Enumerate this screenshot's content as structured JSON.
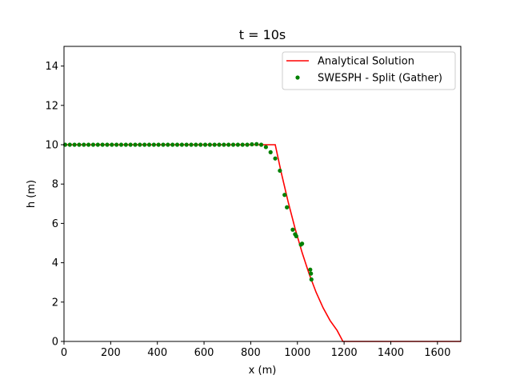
{
  "chart_data": {
    "type": "line",
    "title": "t = 10s",
    "xlabel": "x (m)",
    "ylabel": "h (m)",
    "xlim": [
      0,
      1700
    ],
    "ylim": [
      0,
      15
    ],
    "xticks": [
      0,
      200,
      400,
      600,
      800,
      1000,
      1200,
      1400,
      1600
    ],
    "yticks": [
      0,
      2,
      4,
      6,
      8,
      10,
      12,
      14
    ],
    "xtick_labels": [
      "0",
      "200",
      "400",
      "600",
      "800",
      "1000",
      "1200",
      "1400",
      "1600"
    ],
    "ytick_labels": [
      "0",
      "2",
      "4",
      "6",
      "8",
      "10",
      "12",
      "14"
    ],
    "grid": false,
    "legend_position": "top-right",
    "series": [
      {
        "name": "Analytical Solution",
        "kind": "line",
        "color": "#ff0000",
        "x": [
          0,
          905,
          930,
          960,
          990,
          1020,
          1050,
          1080,
          1110,
          1140,
          1170,
          1195,
          1700
        ],
        "y": [
          10,
          10,
          8.62,
          7.11,
          5.74,
          4.52,
          3.44,
          2.5,
          1.71,
          1.06,
          0.56,
          0.0,
          0.0
        ]
      },
      {
        "name": "SWESPH - Split (Gather)",
        "kind": "scatter",
        "color": "#008000",
        "x": [
          5,
          25,
          45,
          65,
          85,
          105,
          125,
          145,
          165,
          185,
          205,
          225,
          245,
          265,
          285,
          305,
          325,
          345,
          365,
          385,
          405,
          425,
          445,
          465,
          485,
          505,
          525,
          545,
          565,
          585,
          605,
          625,
          645,
          665,
          685,
          705,
          725,
          745,
          765,
          785,
          805,
          825,
          845,
          865,
          885,
          905,
          925,
          945,
          955,
          980,
          990,
          995,
          1015,
          1020,
          1055,
          1058,
          1060
        ],
        "y": [
          10,
          10,
          10,
          10,
          10,
          10,
          10,
          10,
          10,
          10,
          10,
          10,
          10,
          10,
          10,
          10,
          10,
          10,
          10,
          10,
          10,
          10,
          10,
          10,
          10,
          10,
          10,
          10,
          10,
          10,
          10,
          10,
          10,
          10,
          10,
          10,
          10,
          10,
          10,
          10,
          10.02,
          10.03,
          10.0,
          9.88,
          9.62,
          9.3,
          8.68,
          7.45,
          6.82,
          5.68,
          5.45,
          5.35,
          4.92,
          4.97,
          3.65,
          3.45,
          3.15
        ]
      }
    ]
  }
}
